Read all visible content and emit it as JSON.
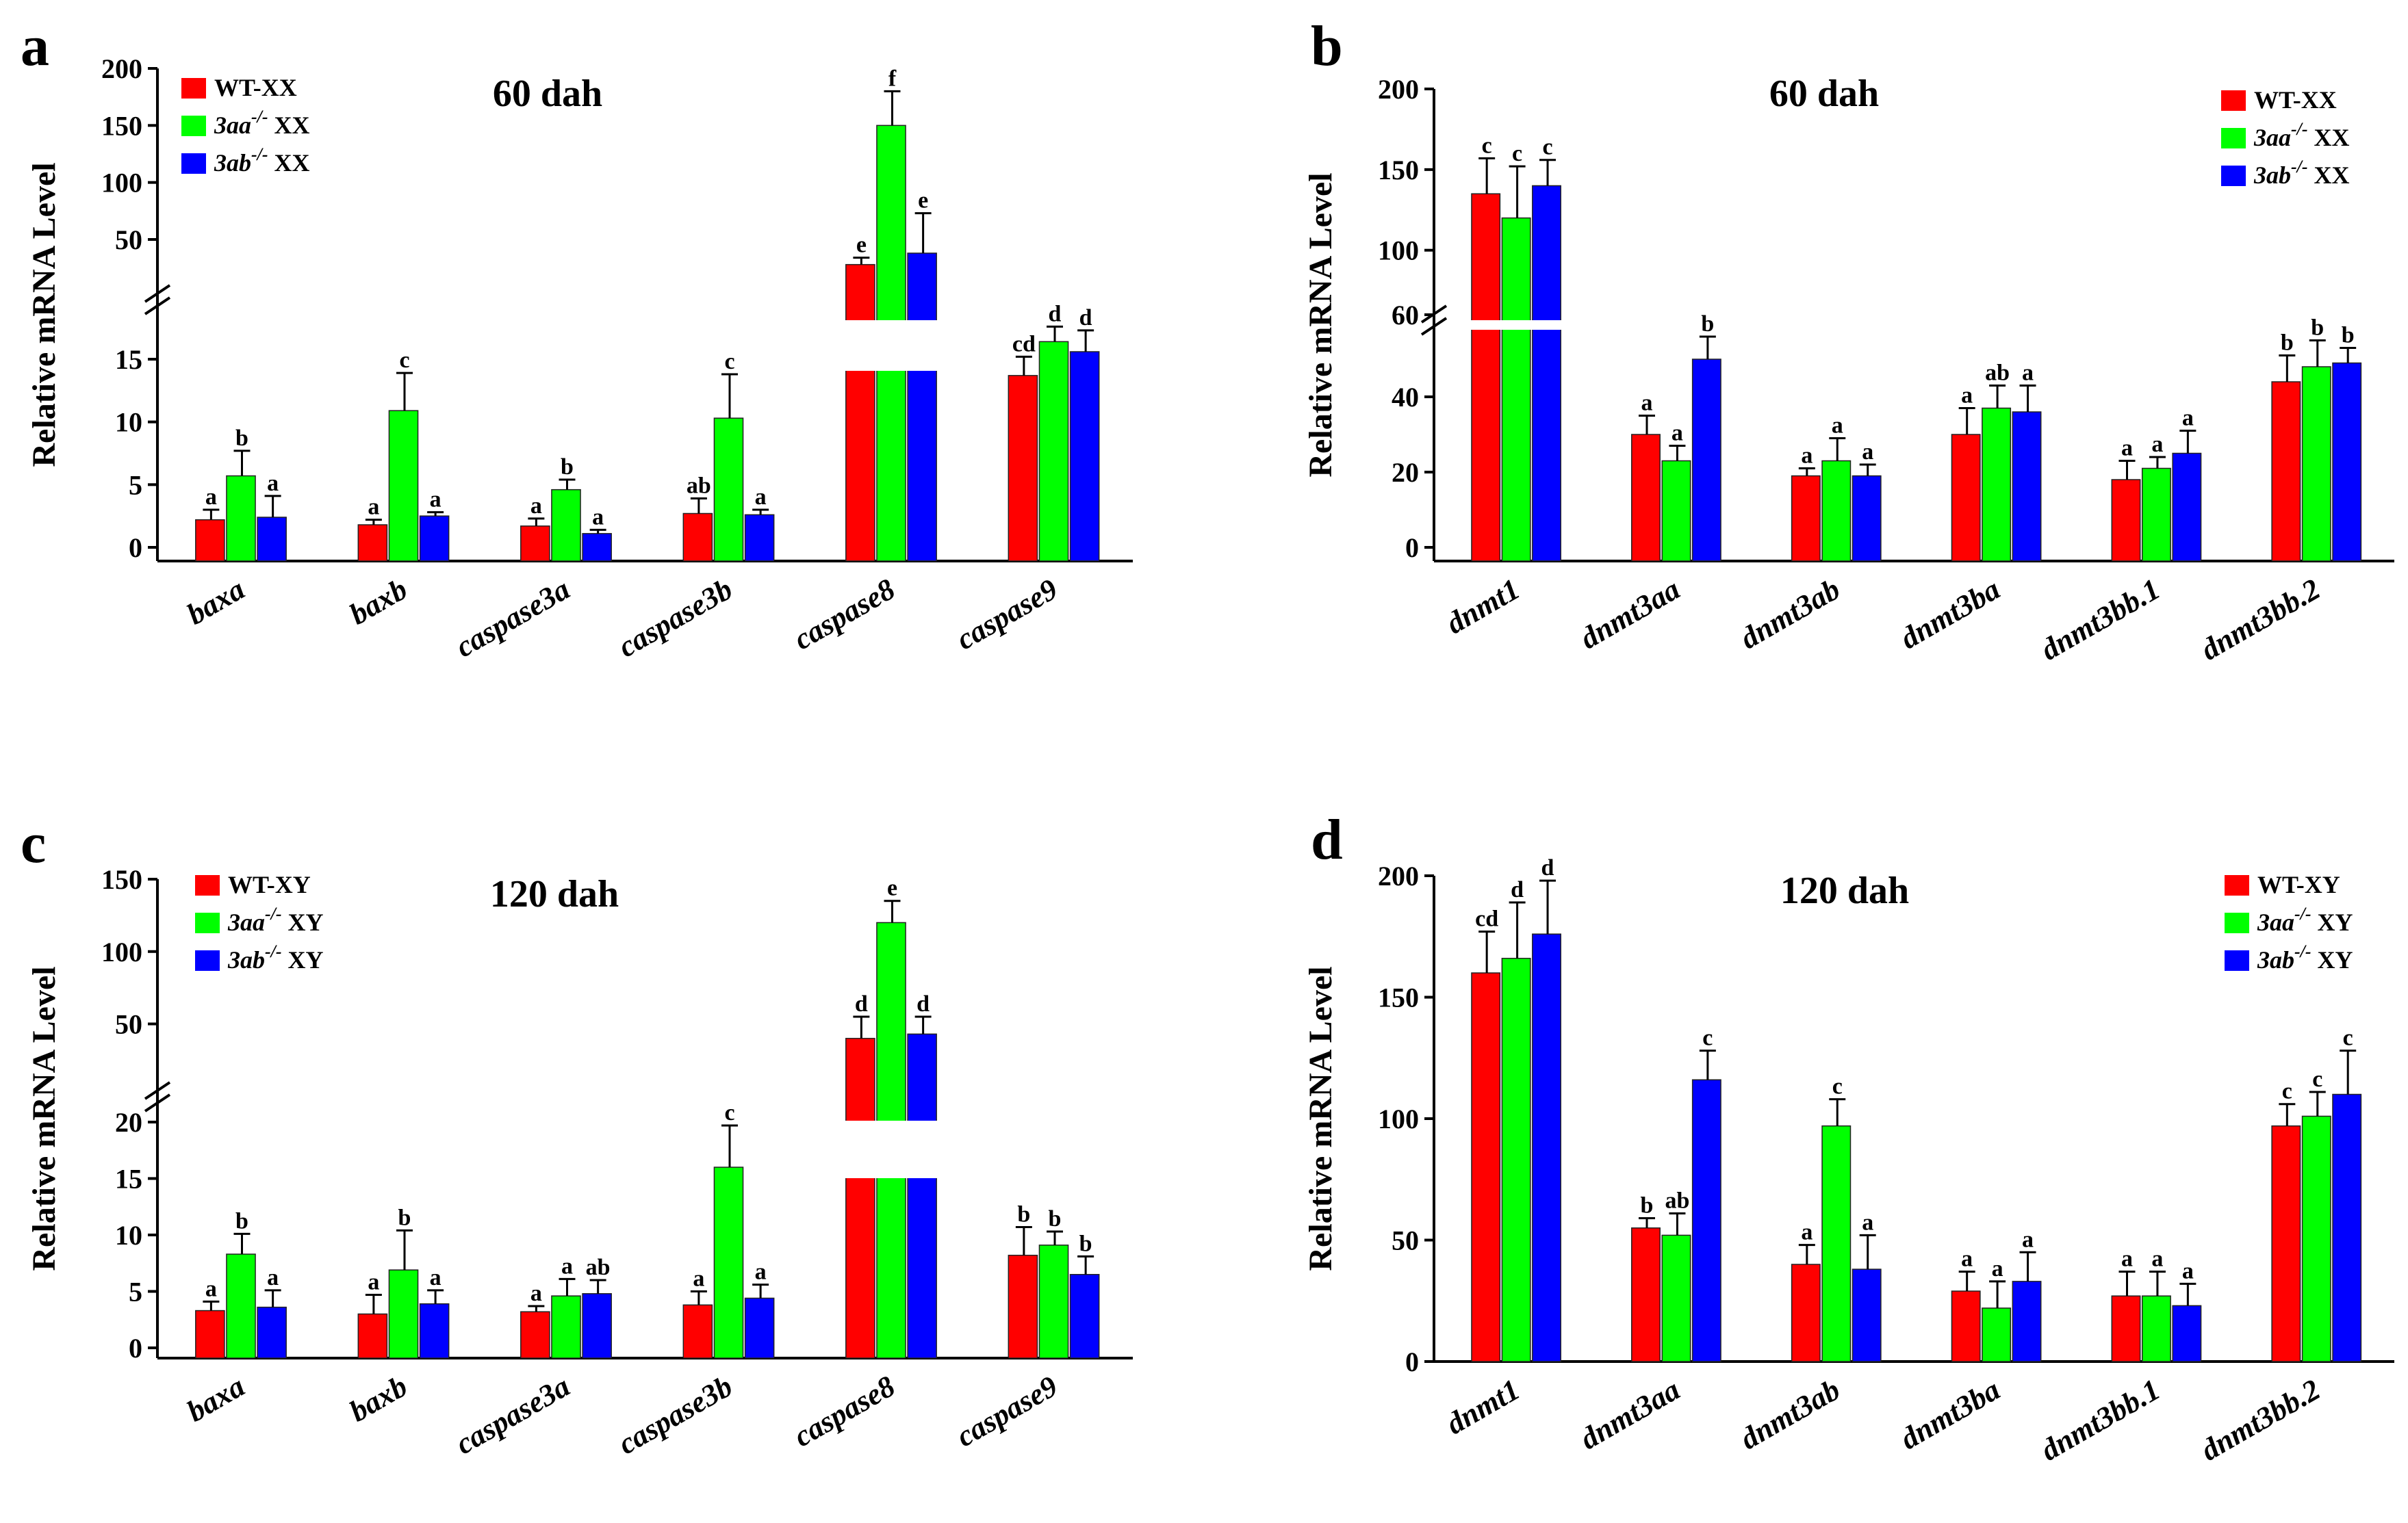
{
  "colors": {
    "wt": "#ff0000",
    "aa": "#00ff00",
    "ab": "#0000ff"
  },
  "chart_data": [
    {
      "panel": "a",
      "type": "bar",
      "title": "60 dah",
      "ylabel": "Relative mRNA Level",
      "categories": [
        "baxa",
        "baxb",
        "caspase3a",
        "caspase3b",
        "caspase8",
        "caspase9"
      ],
      "legend": [
        {
          "name": "WT-XX"
        },
        {
          "pre": "3aa",
          "sup": "-/-",
          "post": " XX"
        },
        {
          "pre": "3ab",
          "sup": "-/-",
          "post": " XX"
        }
      ],
      "series": [
        {
          "name": "WT-XX",
          "values": [
            2.2,
            1.8,
            1.7,
            2.7,
            28,
            13.7
          ],
          "err": [
            0.8,
            0.4,
            0.6,
            1.2,
            6,
            1.5
          ],
          "sig": [
            "a",
            "a",
            "a",
            "ab",
            "e",
            "cd"
          ]
        },
        {
          "name": "3aa-/- XX",
          "values": [
            5.7,
            10.9,
            4.6,
            10.3,
            150,
            16.4
          ],
          "err": [
            2,
            3,
            0.8,
            3.5,
            30,
            1.2
          ],
          "sig": [
            "b",
            "c",
            "b",
            "c",
            "f",
            "d"
          ]
        },
        {
          "name": "3ab-/- XX",
          "values": [
            2.4,
            2.5,
            1.1,
            2.6,
            38,
            15.6
          ],
          "err": [
            1.7,
            0.3,
            0.3,
            0.4,
            35,
            1.7
          ],
          "sig": [
            "a",
            "a",
            "a",
            "a",
            "e",
            "d"
          ]
        }
      ],
      "axis_break": {
        "low_range": [
          0,
          18
        ],
        "high_range": [
          20,
          200
        ]
      },
      "y_ticks_low": [
        0,
        5,
        10,
        15
      ],
      "y_ticks_high": [
        50,
        100,
        150,
        200
      ]
    },
    {
      "panel": "b",
      "type": "bar",
      "title": "60 dah",
      "ylabel": "Relative mRNA Level",
      "categories": [
        "dnmt1",
        "dnmt3aa",
        "dnmt3ab",
        "dnmt3ba",
        "dnmt3bb.1",
        "dnmt3bb.2"
      ],
      "legend": [
        {
          "name": "WT-XX"
        },
        {
          "pre": "3aa",
          "sup": "-/-",
          "post": " XX"
        },
        {
          "pre": "3ab",
          "sup": "-/-",
          "post": " XX"
        }
      ],
      "series": [
        {
          "name": "WT-XX",
          "values": [
            135,
            30,
            19,
            30,
            18,
            44
          ],
          "err": [
            22,
            5,
            2,
            7,
            5,
            7
          ],
          "sig": [
            "c",
            "a",
            "a",
            "a",
            "a",
            "b"
          ]
        },
        {
          "name": "3aa-/- XX",
          "values": [
            120,
            23,
            23,
            37,
            21,
            48
          ],
          "err": [
            32,
            4,
            6,
            6,
            3,
            7
          ],
          "sig": [
            "c",
            "a",
            "a",
            "ab",
            "a",
            "b"
          ]
        },
        {
          "name": "3ab-/- XX",
          "values": [
            140,
            50,
            19,
            36,
            25,
            49
          ],
          "err": [
            16,
            6,
            3,
            7,
            6,
            4
          ],
          "sig": [
            "c",
            "b",
            "a",
            "a",
            "a",
            "b"
          ]
        }
      ],
      "axis_break": {
        "low_range": [
          0,
          60
        ],
        "high_range": [
          60,
          200
        ]
      },
      "y_ticks_low": [
        0,
        20,
        40
      ],
      "y_ticks_high": [
        60,
        100,
        150,
        200
      ]
    },
    {
      "panel": "c",
      "type": "bar",
      "title": "120 dah",
      "ylabel": "Relative mRNA Level",
      "categories": [
        "baxa",
        "baxb",
        "caspase3a",
        "caspase3b",
        "caspase8",
        "caspase9"
      ],
      "legend": [
        {
          "name": "WT-XY"
        },
        {
          "pre": "3aa",
          "sup": "-/-",
          "post": " XY"
        },
        {
          "pre": "3ab",
          "sup": "-/-",
          "post": " XY"
        }
      ],
      "series": [
        {
          "name": "WT-XY",
          "values": [
            3.3,
            3.0,
            3.2,
            3.8,
            40,
            8.2
          ],
          "err": [
            0.8,
            1.7,
            0.5,
            1.2,
            15,
            2.5
          ],
          "sig": [
            "a",
            "a",
            "a",
            "a",
            "d",
            "b"
          ]
        },
        {
          "name": "3aa-/- XY",
          "values": [
            8.3,
            6.9,
            4.6,
            16,
            120,
            9.1
          ],
          "err": [
            1.8,
            3.5,
            1.5,
            3.7,
            15,
            1.2
          ],
          "sig": [
            "b",
            "b",
            "a",
            "c",
            "e",
            "b"
          ]
        },
        {
          "name": "3ab-/- XY",
          "values": [
            3.6,
            3.9,
            4.8,
            4.4,
            43,
            6.5
          ],
          "err": [
            1.5,
            1.2,
            1.2,
            1.2,
            12,
            1.6
          ],
          "sig": [
            "a",
            "a",
            "ab",
            "a",
            "d",
            "b"
          ]
        }
      ],
      "axis_break": {
        "low_range": [
          0,
          20
        ],
        "high_range": [
          20,
          150
        ]
      },
      "y_ticks_low": [
        0,
        5,
        10,
        15,
        20
      ],
      "y_ticks_high": [
        50,
        100,
        150
      ]
    },
    {
      "panel": "d",
      "type": "bar",
      "title": "120 dah",
      "ylabel": "Relative mRNA Level",
      "categories": [
        "dnmt1",
        "dnmt3aa",
        "dnmt3ab",
        "dnmt3ba",
        "dnmt3bb.1",
        "dnmt3bb.2"
      ],
      "legend": [
        {
          "name": "WT-XY"
        },
        {
          "pre": "3aa",
          "sup": "-/-",
          "post": " XY"
        },
        {
          "pre": "3ab",
          "sup": "-/-",
          "post": " XY"
        }
      ],
      "series": [
        {
          "name": "WT-XY",
          "values": [
            160,
            55,
            40,
            29,
            27,
            97
          ],
          "err": [
            17,
            4,
            8,
            8,
            10,
            9
          ],
          "sig": [
            "cd",
            "b",
            "a",
            "a",
            "a",
            "c"
          ]
        },
        {
          "name": "3aa-/- XY",
          "values": [
            166,
            52,
            97,
            22,
            27,
            101
          ],
          "err": [
            23,
            9,
            11,
            11,
            10,
            10
          ],
          "sig": [
            "d",
            "ab",
            "c",
            "a",
            "a",
            "c"
          ]
        },
        {
          "name": "3ab-/- XY",
          "values": [
            176,
            116,
            38,
            33,
            23,
            110
          ],
          "err": [
            22,
            12,
            14,
            12,
            9,
            18
          ],
          "sig": [
            "d",
            "c",
            "a",
            "a",
            "a",
            "c"
          ]
        }
      ],
      "y_range": [
        0,
        200
      ],
      "y_ticks": [
        0,
        50,
        100,
        150,
        200
      ]
    }
  ]
}
